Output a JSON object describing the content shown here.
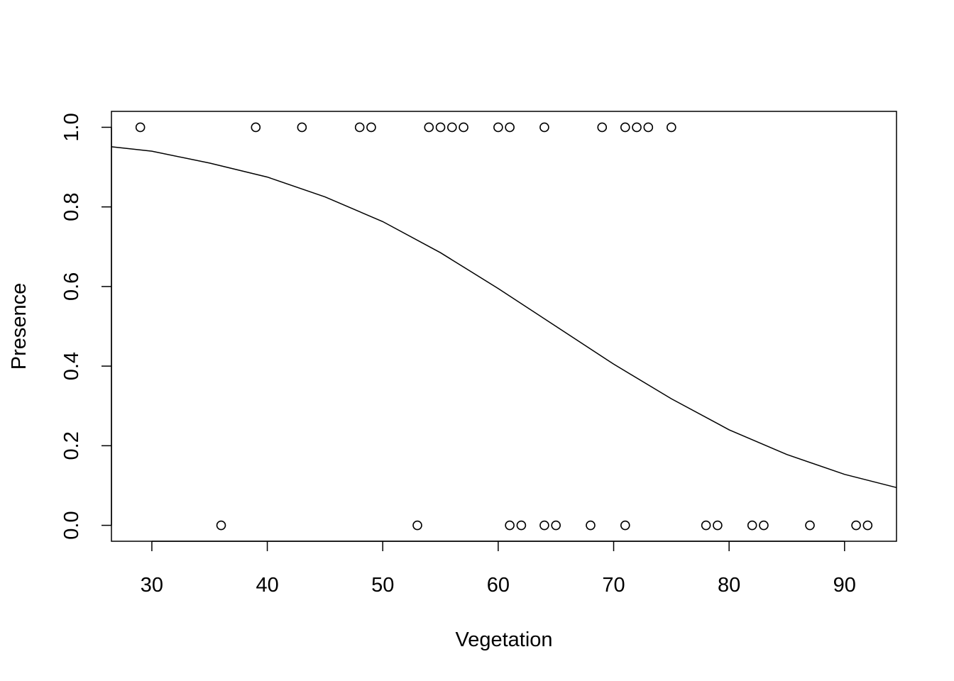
{
  "chart_data": {
    "type": "scatter",
    "title": "",
    "xlabel": "Vegetation",
    "ylabel": "Presence",
    "xlim": [
      26.5,
      94.5
    ],
    "ylim": [
      -0.04,
      1.04
    ],
    "xticks": [
      30,
      40,
      50,
      60,
      70,
      80,
      90
    ],
    "yticks": [
      0.0,
      0.2,
      0.4,
      0.6,
      0.8,
      1.0
    ],
    "ytick_labels": [
      "0.0",
      "0.2",
      "0.4",
      "0.6",
      "0.8",
      "1.0"
    ],
    "grid": false,
    "series": [
      {
        "kind": "points",
        "x": [
          29,
          39,
          43,
          48,
          49,
          54,
          55,
          56,
          57,
          60,
          61,
          64,
          69,
          71,
          72,
          73,
          75,
          36,
          53,
          61,
          62,
          64,
          65,
          68,
          71,
          78,
          79,
          82,
          83,
          87,
          91,
          92
        ],
        "y": [
          1,
          1,
          1,
          1,
          1,
          1,
          1,
          1,
          1,
          1,
          1,
          1,
          1,
          1,
          1,
          1,
          1,
          0,
          0,
          0,
          0,
          0,
          0,
          0,
          0,
          0,
          0,
          0,
          0,
          0,
          0,
          0
        ]
      },
      {
        "kind": "line",
        "x": [
          26.5,
          30,
          35,
          40,
          45,
          50,
          55,
          60,
          65,
          70,
          75,
          80,
          85,
          90,
          94.5
        ],
        "y": [
          0.951,
          0.94,
          0.91,
          0.875,
          0.825,
          0.763,
          0.685,
          0.595,
          0.5,
          0.405,
          0.318,
          0.24,
          0.178,
          0.128,
          0.095
        ]
      }
    ]
  }
}
